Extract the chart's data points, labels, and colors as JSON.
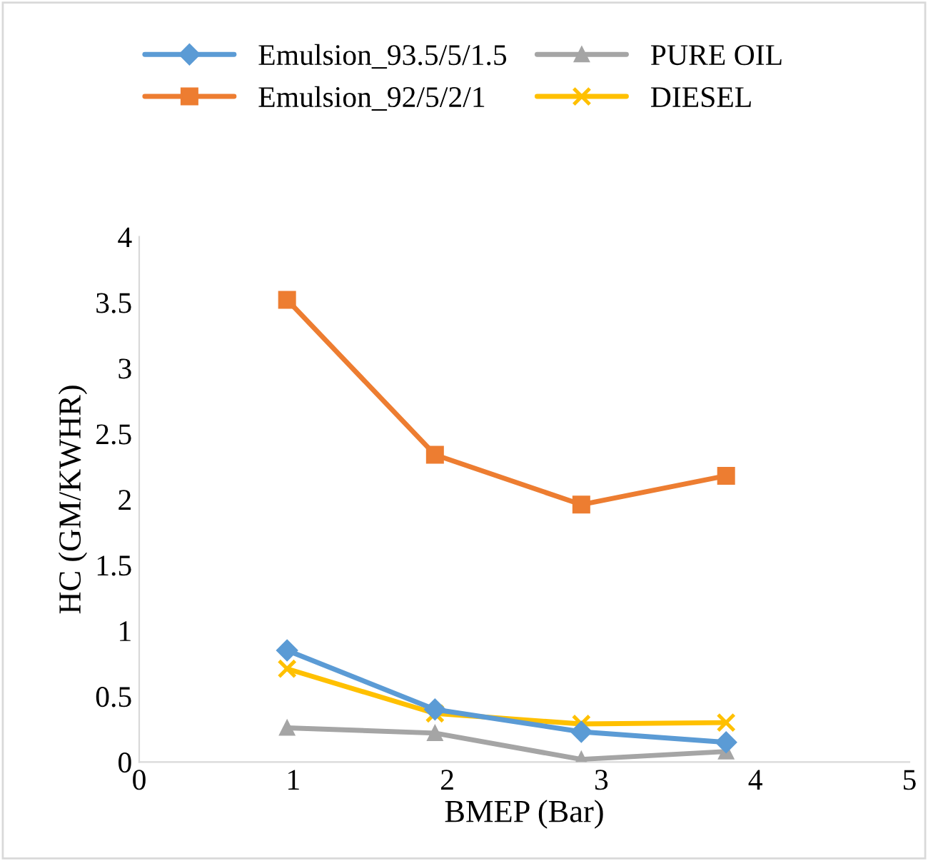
{
  "chart_data": {
    "type": "line",
    "xlabel": "BMEP (Bar)",
    "ylabel": "HC (GM/KWHR)",
    "xlim": [
      0,
      5
    ],
    "xticks": [
      0,
      1,
      2,
      3,
      4,
      5
    ],
    "ylim": [
      0,
      4
    ],
    "yticks": [
      0,
      0.5,
      1,
      1.5,
      2,
      2.5,
      3,
      3.5,
      4
    ],
    "grid": false,
    "legend": "top",
    "line_style": "solid",
    "x": [
      0.96,
      1.92,
      2.87,
      3.81
    ],
    "series": [
      {
        "name": "Emulsion_93.5/5/1.5",
        "color": "#5b9bd5",
        "marker": "diamond",
        "values": [
          0.85,
          0.4,
          0.23,
          0.15
        ]
      },
      {
        "name": "Emulsion_92/5/2/1",
        "color": "#ed7d31",
        "marker": "square",
        "values": [
          3.52,
          2.34,
          1.96,
          2.18
        ]
      },
      {
        "name": "PURE OIL",
        "color": "#a5a5a5",
        "marker": "triangle",
        "values": [
          0.26,
          0.22,
          0.02,
          0.08
        ]
      },
      {
        "name": "DIESEL",
        "color": "#ffc000",
        "marker": "cross",
        "values": [
          0.71,
          0.37,
          0.29,
          0.3
        ]
      }
    ]
  }
}
